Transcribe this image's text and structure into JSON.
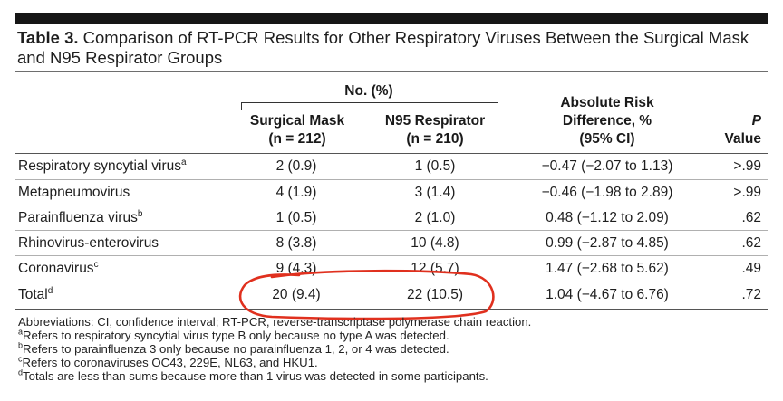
{
  "table": {
    "label": "Table 3.",
    "title": "Comparison of RT-PCR Results for Other Respiratory Viruses Between the Surgical Mask and N95 Respirator Groups",
    "group_header": "No. (%)",
    "columns": {
      "surgical": {
        "line1": "Surgical Mask",
        "line2": "(n = 212)"
      },
      "n95": {
        "line1": "N95 Respirator",
        "line2": "(n = 210)"
      },
      "risk": {
        "line1": "Absolute Risk",
        "line2": "Difference, %",
        "line3": "(95% CI)"
      },
      "p": {
        "line1": "P",
        "line2": "Value"
      }
    },
    "rows": [
      {
        "virus": "Respiratory syncytial virus",
        "note": "a",
        "surgical": "2 (0.9)",
        "n95": "1 (0.5)",
        "risk": "−0.47 (−2.07 to 1.13)",
        "p": ">.99"
      },
      {
        "virus": "Metapneumovirus",
        "note": "",
        "surgical": "4 (1.9)",
        "n95": "3 (1.4)",
        "risk": "−0.46 (−1.98 to 2.89)",
        "p": ">.99"
      },
      {
        "virus": "Parainfluenza virus",
        "note": "b",
        "surgical": "1 (0.5)",
        "n95": "2 (1.0)",
        "risk": "0.48 (−1.12 to 2.09)",
        "p": ".62"
      },
      {
        "virus": "Rhinovirus-enterovirus",
        "note": "",
        "surgical": "8 (3.8)",
        "n95": "10 (4.8)",
        "risk": "0.99 (−2.87 to 4.85)",
        "p": ".62"
      },
      {
        "virus": "Coronavirus",
        "note": "c",
        "surgical": "9 (4.3)",
        "n95": "12 (5.7)",
        "risk": "1.47 (−2.68 to 5.62)",
        "p": ".49"
      },
      {
        "virus": "Total",
        "note": "d",
        "surgical": "20 (9.4)",
        "n95": "22 (10.5)",
        "risk": "1.04 (−4.67 to 6.76)",
        "p": ".72"
      }
    ],
    "footnotes": {
      "abbreviations": "Abbreviations: CI, confidence interval; RT-PCR, reverse-transcriptase polymerase chain reaction.",
      "a": {
        "mark": "a",
        "text": "Refers to respiratory syncytial virus type B only because no type A was detected."
      },
      "b": {
        "mark": "b",
        "text": "Refers to parainfluenza 3 only because no parainfluenza 1, 2, or 4 was detected."
      },
      "c": {
        "mark": "c",
        "text": "Refers to coronaviruses OC43, 229E, NL63, and HKU1."
      },
      "d": {
        "mark": "d",
        "text": "Totals are less than sums because more than 1 virus was detected in some participants."
      }
    }
  },
  "annotation": {
    "color": "#e0301e"
  }
}
